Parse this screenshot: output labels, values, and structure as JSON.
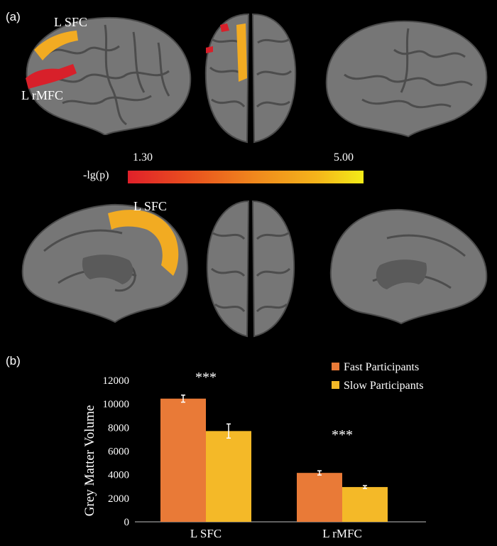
{
  "panel_a": {
    "label": "(a)",
    "region_labels": {
      "sfc_top": "L SFC",
      "rmfc": "L rMFC",
      "sfc_medial": "L SFC"
    },
    "colorbar": {
      "label": "-lg(p)",
      "min_label": "1.30",
      "max_label": "5.00",
      "color_low": "#e0202a",
      "color_high": "#f3ec18"
    }
  },
  "panel_b": {
    "label": "(b)"
  },
  "chart_data": {
    "type": "bar",
    "categories": [
      "L SFC",
      "L rMFC"
    ],
    "series": [
      {
        "name": "Fast Participants",
        "values": [
          10450,
          4150
        ],
        "errors": [
          300,
          180
        ],
        "color": "#e97a37"
      },
      {
        "name": "Slow Participants",
        "values": [
          7700,
          2950
        ],
        "errors": [
          600,
          120
        ],
        "color": "#f4b928"
      }
    ],
    "ylabel": "Grey Matter Volume",
    "ylim": [
      0,
      12000
    ],
    "yticks": [
      0,
      2000,
      4000,
      6000,
      8000,
      10000,
      12000
    ],
    "significance": [
      "***",
      "***"
    ],
    "legend_position": "top-right",
    "grid": false
  }
}
